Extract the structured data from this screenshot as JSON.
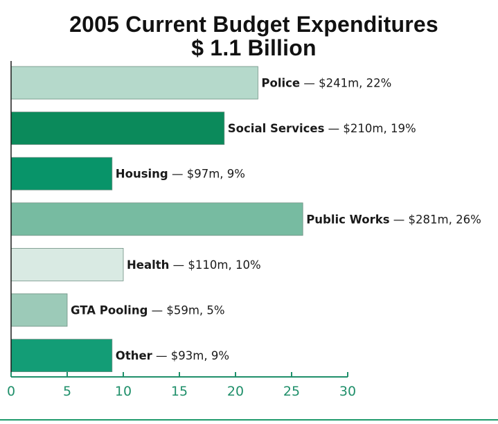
{
  "chart_data": {
    "type": "bar",
    "orientation": "horizontal",
    "title": "2005 Current Budget Expenditures",
    "subtitle": "$ 1.1 Billion",
    "xlabel": "",
    "ylabel": "",
    "xlim": [
      0,
      30
    ],
    "xticks": [
      "0",
      "5",
      "10",
      "15",
      "20",
      "25",
      "30"
    ],
    "grid": false,
    "bars": [
      {
        "name": "Police",
        "detail": "$241m, 22%",
        "value": 22,
        "color": "#b5d9cb"
      },
      {
        "name": "Social Services",
        "detail": "$210m, 19%",
        "value": 19,
        "color": "#0b8a5b"
      },
      {
        "name": "Housing",
        "detail": "$97m, 9%",
        "value": 9,
        "color": "#089469"
      },
      {
        "name": "Public Works",
        "detail": "$281m, 26%",
        "value": 26,
        "color": "#77bba1"
      },
      {
        "name": "Health",
        "detail": "$110m, 10%",
        "value": 10,
        "color": "#d9eae3"
      },
      {
        "name": "GTA Pooling",
        "detail": "$59m, 5%",
        "value": 5,
        "color": "#9ccab8"
      },
      {
        "name": "Other",
        "detail": "$93m, 9%",
        "value": 9,
        "color": "#139d76"
      }
    ],
    "separator": " — ",
    "axis_color": "#1f8f6a"
  }
}
